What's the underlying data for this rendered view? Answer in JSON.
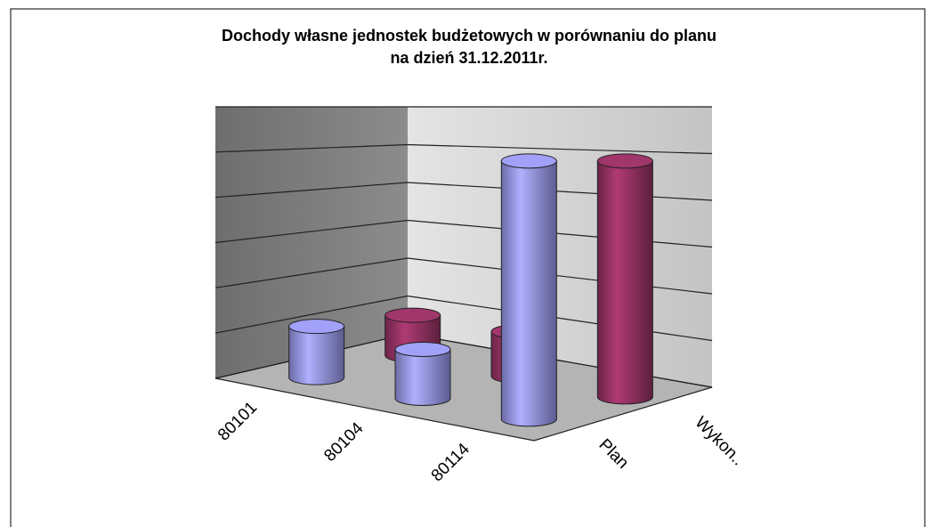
{
  "chart_data": {
    "type": "cylinder3d",
    "title": "Dochody własne jednostek budżetowych w porównaniu do planu",
    "subtitle": "na dzień 31.12.2011r.",
    "categories": [
      "80101",
      "80104",
      "80114"
    ],
    "series": [
      {
        "name": "Plan",
        "color": "#9999ee",
        "values": [
          1.15,
          1.1,
          5.8
        ]
      },
      {
        "name": "Wykon..",
        "color": "#993366",
        "values": [
          0.9,
          1.0,
          5.3
        ]
      }
    ],
    "ylim": [
      0,
      6
    ],
    "yticks": [
      0,
      1,
      2,
      3,
      4,
      5,
      6
    ],
    "grid": true
  }
}
